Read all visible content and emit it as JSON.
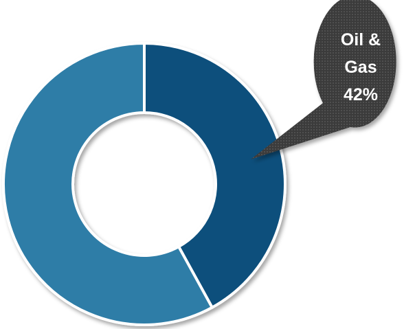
{
  "chart_data": {
    "type": "donut",
    "categories": [
      "Oil & Gas",
      null
    ],
    "values": [
      42,
      58
    ],
    "value_labels": [
      "42%",
      null
    ],
    "colors": [
      "#0b4f7c",
      "#2f7da7"
    ]
  }
}
